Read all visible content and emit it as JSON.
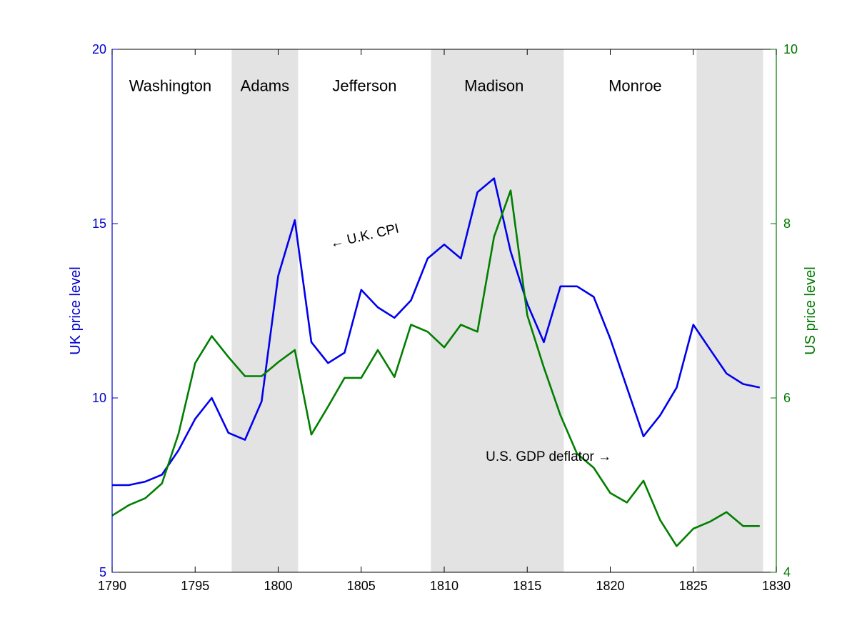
{
  "chart_data": {
    "type": "line",
    "x_axis": {
      "range": [
        1790,
        1830
      ],
      "ticks": [
        1790,
        1795,
        1800,
        1805,
        1810,
        1815,
        1820,
        1825,
        1830
      ]
    },
    "y_left": {
      "label": "UK price level",
      "range": [
        5,
        20
      ],
      "ticks": [
        5,
        10,
        15,
        20
      ],
      "color": "#0000cc"
    },
    "y_right": {
      "label": "US price level",
      "range": [
        4,
        10
      ],
      "ticks": [
        4,
        6,
        8,
        10
      ],
      "color": "#007700"
    },
    "shaded_periods": [
      {
        "start": 1797.2,
        "end": 1801.2
      },
      {
        "start": 1809.2,
        "end": 1817.2
      },
      {
        "start": 1825.2,
        "end": 1829.2
      }
    ],
    "shade_color": "#e3e3e3",
    "era_labels": [
      {
        "text": "Washington",
        "x": 1793.5
      },
      {
        "text": "Adams",
        "x": 1799.2
      },
      {
        "text": "Jefferson",
        "x": 1805.2
      },
      {
        "text": "Madison",
        "x": 1813.0
      },
      {
        "text": "Monroe",
        "x": 1821.5
      }
    ],
    "era_label_y": 18.8,
    "series": [
      {
        "name": "U.K. CPI",
        "axis": "left",
        "color": "#0000ee",
        "x": [
          1790,
          1791,
          1792,
          1793,
          1794,
          1795,
          1796,
          1797,
          1798,
          1799,
          1800,
          1801,
          1802,
          1803,
          1804,
          1805,
          1806,
          1807,
          1808,
          1809,
          1810,
          1811,
          1812,
          1813,
          1814,
          1815,
          1816,
          1817,
          1818,
          1819,
          1820,
          1821,
          1822,
          1823,
          1824,
          1825,
          1826,
          1827,
          1828,
          1829
        ],
        "values": [
          7.5,
          7.5,
          7.6,
          7.8,
          8.5,
          9.4,
          10.0,
          9.0,
          8.8,
          9.9,
          13.5,
          15.1,
          11.6,
          11.0,
          11.3,
          13.1,
          12.6,
          12.3,
          12.8,
          14.0,
          14.4,
          14.0,
          15.9,
          16.3,
          14.2,
          12.7,
          11.6,
          13.2,
          13.2,
          12.9,
          11.7,
          10.3,
          8.9,
          9.5,
          10.3,
          12.1,
          11.4,
          10.7,
          10.4,
          10.3
        ]
      },
      {
        "name": "U.S. GDP deflator",
        "axis": "right",
        "color": "#007f00",
        "x": [
          1790,
          1791,
          1792,
          1793,
          1794,
          1795,
          1796,
          1797,
          1798,
          1799,
          1800,
          1801,
          1802,
          1803,
          1804,
          1805,
          1806,
          1807,
          1808,
          1809,
          1810,
          1811,
          1812,
          1813,
          1814,
          1815,
          1816,
          1817,
          1818,
          1819,
          1820,
          1821,
          1822,
          1823,
          1824,
          1825,
          1826,
          1827,
          1828,
          1829
        ],
        "values": [
          4.65,
          4.77,
          4.85,
          5.02,
          5.59,
          6.4,
          6.71,
          6.47,
          6.25,
          6.25,
          6.41,
          6.55,
          5.58,
          5.9,
          6.23,
          6.23,
          6.55,
          6.24,
          6.84,
          6.76,
          6.58,
          6.84,
          6.76,
          7.85,
          8.38,
          6.95,
          6.35,
          5.8,
          5.36,
          5.2,
          4.91,
          4.8,
          5.05,
          4.6,
          4.3,
          4.5,
          4.58,
          4.69,
          4.53,
          4.53
        ]
      }
    ],
    "annotations": [
      {
        "text": "← U.K. CPI",
        "x": 1803.2,
        "y_left": 14.3,
        "rotate": -13
      },
      {
        "text": "U.S. GDP deflator →",
        "x": 1812.5,
        "y_left": 8.2,
        "rotate": 0
      }
    ]
  }
}
